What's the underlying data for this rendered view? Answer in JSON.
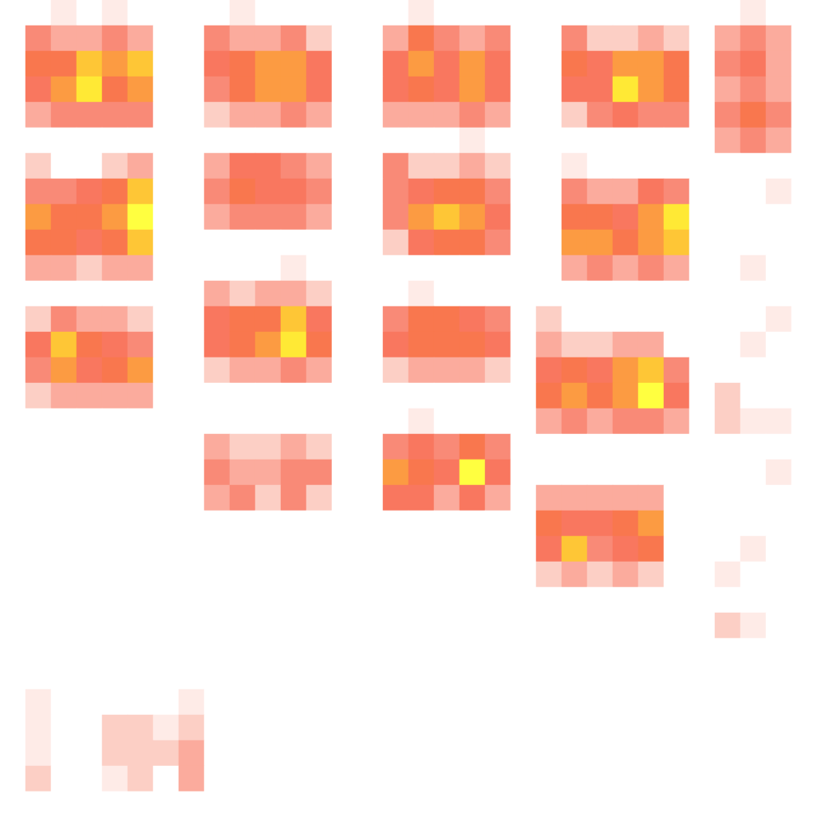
{
  "chart_data": {
    "type": "heatmap",
    "tick_labels": false,
    "cells": [
      [
        0,
        0,
        1,
        0,
        1,
        0,
        0,
        0,
        0,
        1,
        0,
        0,
        0,
        0,
        0,
        0,
        1,
        0,
        0,
        0,
        0,
        0,
        0,
        0,
        0,
        0,
        0,
        0,
        0,
        1,
        0,
        0
      ],
      [
        0,
        4,
        3,
        3,
        4,
        3,
        0,
        0,
        4,
        3,
        3,
        4,
        2,
        0,
        0,
        3,
        6,
        4,
        3,
        4,
        0,
        0,
        4,
        2,
        2,
        3,
        2,
        0,
        3,
        4,
        3,
        0
      ],
      [
        0,
        6,
        6,
        8,
        7,
        8,
        0,
        0,
        5,
        6,
        7,
        7,
        5,
        0,
        0,
        5,
        7,
        5,
        7,
        5,
        0,
        0,
        6,
        5,
        7,
        7,
        6,
        0,
        4,
        5,
        3,
        0
      ],
      [
        0,
        5,
        7,
        9,
        6,
        7,
        0,
        0,
        4,
        6,
        7,
        7,
        5,
        0,
        0,
        5,
        6,
        5,
        7,
        5,
        0,
        0,
        5,
        5,
        9,
        7,
        6,
        0,
        3,
        4,
        3,
        0
      ],
      [
        0,
        3,
        4,
        4,
        4,
        4,
        0,
        0,
        2,
        3,
        3,
        4,
        3,
        0,
        0,
        3,
        3,
        3,
        4,
        3,
        0,
        0,
        2,
        4,
        5,
        4,
        4,
        0,
        4,
        6,
        4,
        0
      ],
      [
        0,
        0,
        0,
        0,
        0,
        0,
        0,
        0,
        0,
        0,
        0,
        0,
        0,
        0,
        0,
        0,
        0,
        0,
        1,
        0,
        0,
        0,
        0,
        0,
        0,
        0,
        0,
        0,
        3,
        4,
        3,
        0
      ],
      [
        0,
        2,
        0,
        0,
        2,
        3,
        0,
        0,
        3,
        5,
        5,
        4,
        3,
        0,
        0,
        4,
        2,
        2,
        3,
        2,
        0,
        0,
        1,
        0,
        0,
        0,
        0,
        0,
        0,
        0,
        0,
        0
      ],
      [
        0,
        4,
        4,
        5,
        6,
        8,
        0,
        0,
        4,
        6,
        5,
        5,
        4,
        0,
        0,
        4,
        5,
        6,
        6,
        4,
        0,
        0,
        4,
        3,
        3,
        5,
        4,
        0,
        0,
        0,
        1,
        0
      ],
      [
        0,
        7,
        6,
        6,
        7,
        10,
        0,
        0,
        3,
        4,
        4,
        4,
        3,
        0,
        0,
        4,
        7,
        8,
        7,
        5,
        0,
        0,
        6,
        6,
        5,
        7,
        9,
        0,
        0,
        0,
        0,
        0
      ],
      [
        0,
        6,
        6,
        5,
        6,
        8,
        0,
        0,
        0,
        0,
        0,
        0,
        0,
        0,
        0,
        2,
        5,
        6,
        6,
        4,
        0,
        0,
        7,
        7,
        6,
        7,
        8,
        0,
        0,
        0,
        0,
        0
      ],
      [
        0,
        3,
        3,
        2,
        3,
        3,
        0,
        0,
        0,
        0,
        0,
        1,
        0,
        0,
        0,
        0,
        0,
        0,
        0,
        0,
        0,
        0,
        3,
        4,
        3,
        4,
        3,
        0,
        0,
        1,
        0,
        0
      ],
      [
        0,
        0,
        0,
        0,
        0,
        0,
        0,
        0,
        3,
        2,
        3,
        3,
        2,
        0,
        0,
        0,
        1,
        0,
        0,
        0,
        0,
        0,
        0,
        0,
        0,
        0,
        0,
        0,
        0,
        0,
        0,
        0
      ],
      [
        0,
        2,
        4,
        3,
        3,
        2,
        0,
        0,
        5,
        6,
        6,
        8,
        5,
        0,
        0,
        4,
        6,
        6,
        5,
        4,
        0,
        2,
        0,
        0,
        0,
        0,
        0,
        0,
        0,
        0,
        1,
        0
      ],
      [
        0,
        5,
        8,
        6,
        5,
        4,
        0,
        0,
        5,
        6,
        7,
        9,
        6,
        0,
        0,
        5,
        6,
        6,
        6,
        5,
        0,
        3,
        2,
        2,
        3,
        3,
        0,
        0,
        0,
        1,
        0,
        0
      ],
      [
        0,
        4,
        7,
        5,
        6,
        7,
        0,
        0,
        2,
        3,
        3,
        4,
        3,
        0,
        0,
        2,
        3,
        3,
        3,
        2,
        0,
        5,
        6,
        5,
        7,
        8,
        4,
        0,
        0,
        0,
        0,
        0
      ],
      [
        0,
        2,
        3,
        3,
        3,
        3,
        0,
        0,
        0,
        0,
        0,
        0,
        0,
        0,
        0,
        0,
        0,
        0,
        0,
        0,
        0,
        6,
        7,
        6,
        7,
        10,
        5,
        0,
        2,
        0,
        0,
        0
      ],
      [
        0,
        0,
        0,
        0,
        0,
        0,
        0,
        0,
        0,
        0,
        0,
        0,
        0,
        0,
        0,
        0,
        1,
        0,
        0,
        0,
        0,
        3,
        4,
        3,
        4,
        4,
        3,
        0,
        2,
        1,
        1,
        0
      ],
      [
        0,
        0,
        0,
        0,
        0,
        0,
        0,
        0,
        3,
        2,
        2,
        3,
        2,
        0,
        0,
        4,
        5,
        4,
        6,
        4,
        0,
        0,
        0,
        0,
        0,
        0,
        0,
        0,
        0,
        0,
        0,
        0
      ],
      [
        0,
        0,
        0,
        0,
        0,
        0,
        0,
        0,
        4,
        3,
        3,
        4,
        4,
        0,
        0,
        7,
        6,
        5,
        10,
        5,
        0,
        0,
        0,
        0,
        0,
        0,
        0,
        0,
        0,
        0,
        1,
        0
      ],
      [
        0,
        0,
        0,
        0,
        0,
        0,
        0,
        0,
        3,
        4,
        2,
        4,
        2,
        0,
        0,
        5,
        5,
        3,
        5,
        3,
        0,
        3,
        3,
        3,
        3,
        3,
        0,
        0,
        0,
        0,
        0,
        0
      ],
      [
        0,
        0,
        0,
        0,
        0,
        0,
        0,
        0,
        0,
        0,
        0,
        0,
        0,
        0,
        0,
        0,
        0,
        0,
        0,
        0,
        0,
        6,
        5,
        5,
        6,
        7,
        0,
        0,
        0,
        0,
        0,
        0
      ],
      [
        0,
        0,
        0,
        0,
        0,
        0,
        0,
        0,
        0,
        0,
        0,
        0,
        0,
        0,
        0,
        0,
        0,
        0,
        0,
        0,
        0,
        5,
        8,
        4,
        5,
        6,
        0,
        0,
        0,
        1,
        0,
        0
      ],
      [
        0,
        0,
        0,
        0,
        0,
        0,
        0,
        0,
        0,
        0,
        0,
        0,
        0,
        0,
        0,
        0,
        0,
        0,
        0,
        0,
        0,
        2,
        3,
        2,
        3,
        2,
        0,
        0,
        1,
        0,
        0,
        0
      ],
      [
        0,
        0,
        0,
        0,
        0,
        0,
        0,
        0,
        0,
        0,
        0,
        0,
        0,
        0,
        0,
        0,
        0,
        0,
        0,
        0,
        0,
        0,
        0,
        0,
        0,
        0,
        0,
        0,
        0,
        0,
        0,
        0
      ],
      [
        0,
        0,
        0,
        0,
        0,
        0,
        0,
        0,
        0,
        0,
        0,
        0,
        0,
        0,
        0,
        0,
        0,
        0,
        0,
        0,
        0,
        0,
        0,
        0,
        0,
        0,
        0,
        0,
        2,
        1,
        0,
        0
      ],
      [
        0,
        0,
        0,
        0,
        0,
        0,
        0,
        0,
        0,
        0,
        0,
        0,
        0,
        0,
        0,
        0,
        0,
        0,
        0,
        0,
        0,
        0,
        0,
        0,
        0,
        0,
        0,
        0,
        0,
        0,
        0,
        0
      ],
      [
        0,
        0,
        0,
        0,
        0,
        0,
        0,
        0,
        0,
        0,
        0,
        0,
        0,
        0,
        0,
        0,
        0,
        0,
        0,
        0,
        0,
        0,
        0,
        0,
        0,
        0,
        0,
        0,
        0,
        0,
        0,
        0
      ],
      [
        0,
        1,
        0,
        0,
        0,
        0,
        0,
        1,
        0,
        0,
        0,
        0,
        0,
        0,
        0,
        0,
        0,
        0,
        0,
        0,
        0,
        0,
        0,
        0,
        0,
        0,
        0,
        0,
        0,
        0,
        0,
        0
      ],
      [
        0,
        1,
        0,
        0,
        2,
        2,
        1,
        2,
        0,
        0,
        0,
        0,
        0,
        0,
        0,
        0,
        0,
        0,
        0,
        0,
        0,
        0,
        0,
        0,
        0,
        0,
        0,
        0,
        0,
        0,
        0,
        0
      ],
      [
        0,
        1,
        0,
        0,
        2,
        2,
        2,
        3,
        0,
        0,
        0,
        0,
        0,
        0,
        0,
        0,
        0,
        0,
        0,
        0,
        0,
        0,
        0,
        0,
        0,
        0,
        0,
        0,
        0,
        0,
        0,
        0
      ],
      [
        0,
        2,
        0,
        0,
        1,
        2,
        0,
        3,
        0,
        0,
        0,
        0,
        0,
        0,
        0,
        0,
        0,
        0,
        0,
        0,
        0,
        0,
        0,
        0,
        0,
        0,
        0,
        0,
        0,
        0,
        0,
        0
      ],
      [
        0,
        0,
        0,
        0,
        0,
        0,
        0,
        0,
        0,
        0,
        0,
        0,
        0,
        0,
        0,
        0,
        0,
        0,
        0,
        0,
        0,
        0,
        0,
        0,
        0,
        0,
        0,
        0,
        0,
        0,
        0,
        0
      ]
    ]
  }
}
